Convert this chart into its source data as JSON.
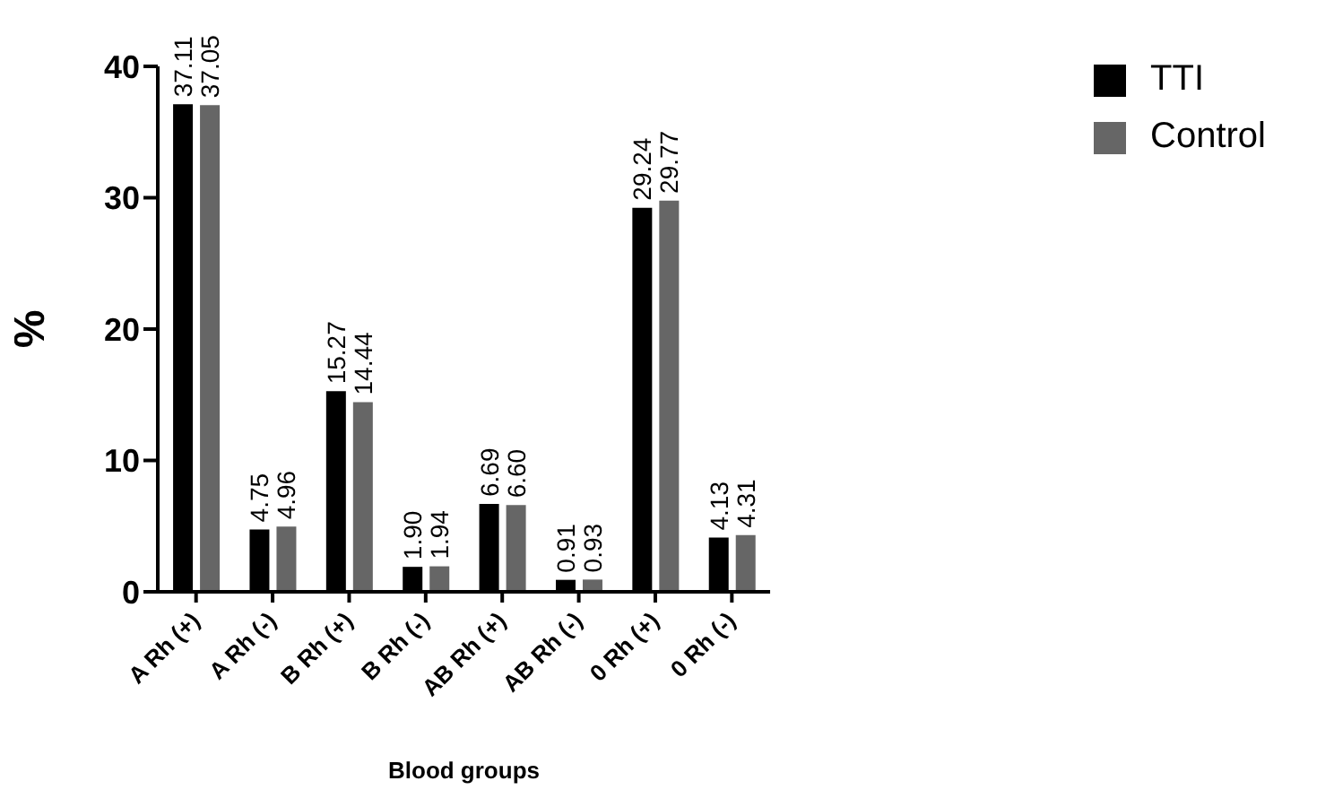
{
  "chart_data": {
    "type": "bar",
    "xlabel": "Blood groups",
    "ylabel": "%",
    "categories": [
      "A Rh (+)",
      "A Rh (-)",
      "B Rh (+)",
      "B Rh (-)",
      "AB Rh (+)",
      "AB Rh (-)",
      "0 Rh (+)",
      "0 Rh (-)"
    ],
    "series": [
      {
        "name": "TTI",
        "color": "#000000",
        "values": [
          37.11,
          4.75,
          15.27,
          1.9,
          6.69,
          0.91,
          29.24,
          4.13
        ],
        "value_labels": [
          "37.11",
          "4.75",
          "15.27",
          "1.90",
          "6.69",
          "0.91",
          "29.24",
          "4.13"
        ]
      },
      {
        "name": "Control",
        "color": "#666666",
        "values": [
          37.05,
          4.96,
          14.44,
          1.94,
          6.6,
          0.93,
          29.77,
          4.31
        ],
        "value_labels": [
          "37.05",
          "4.96",
          "14.44",
          "1.94",
          "6.60",
          "0.93",
          "29.77",
          "4.31"
        ]
      }
    ],
    "ylim": [
      0,
      40
    ],
    "yticks": [
      0,
      10,
      20,
      30,
      40
    ],
    "grid": false,
    "legend": "top right"
  }
}
